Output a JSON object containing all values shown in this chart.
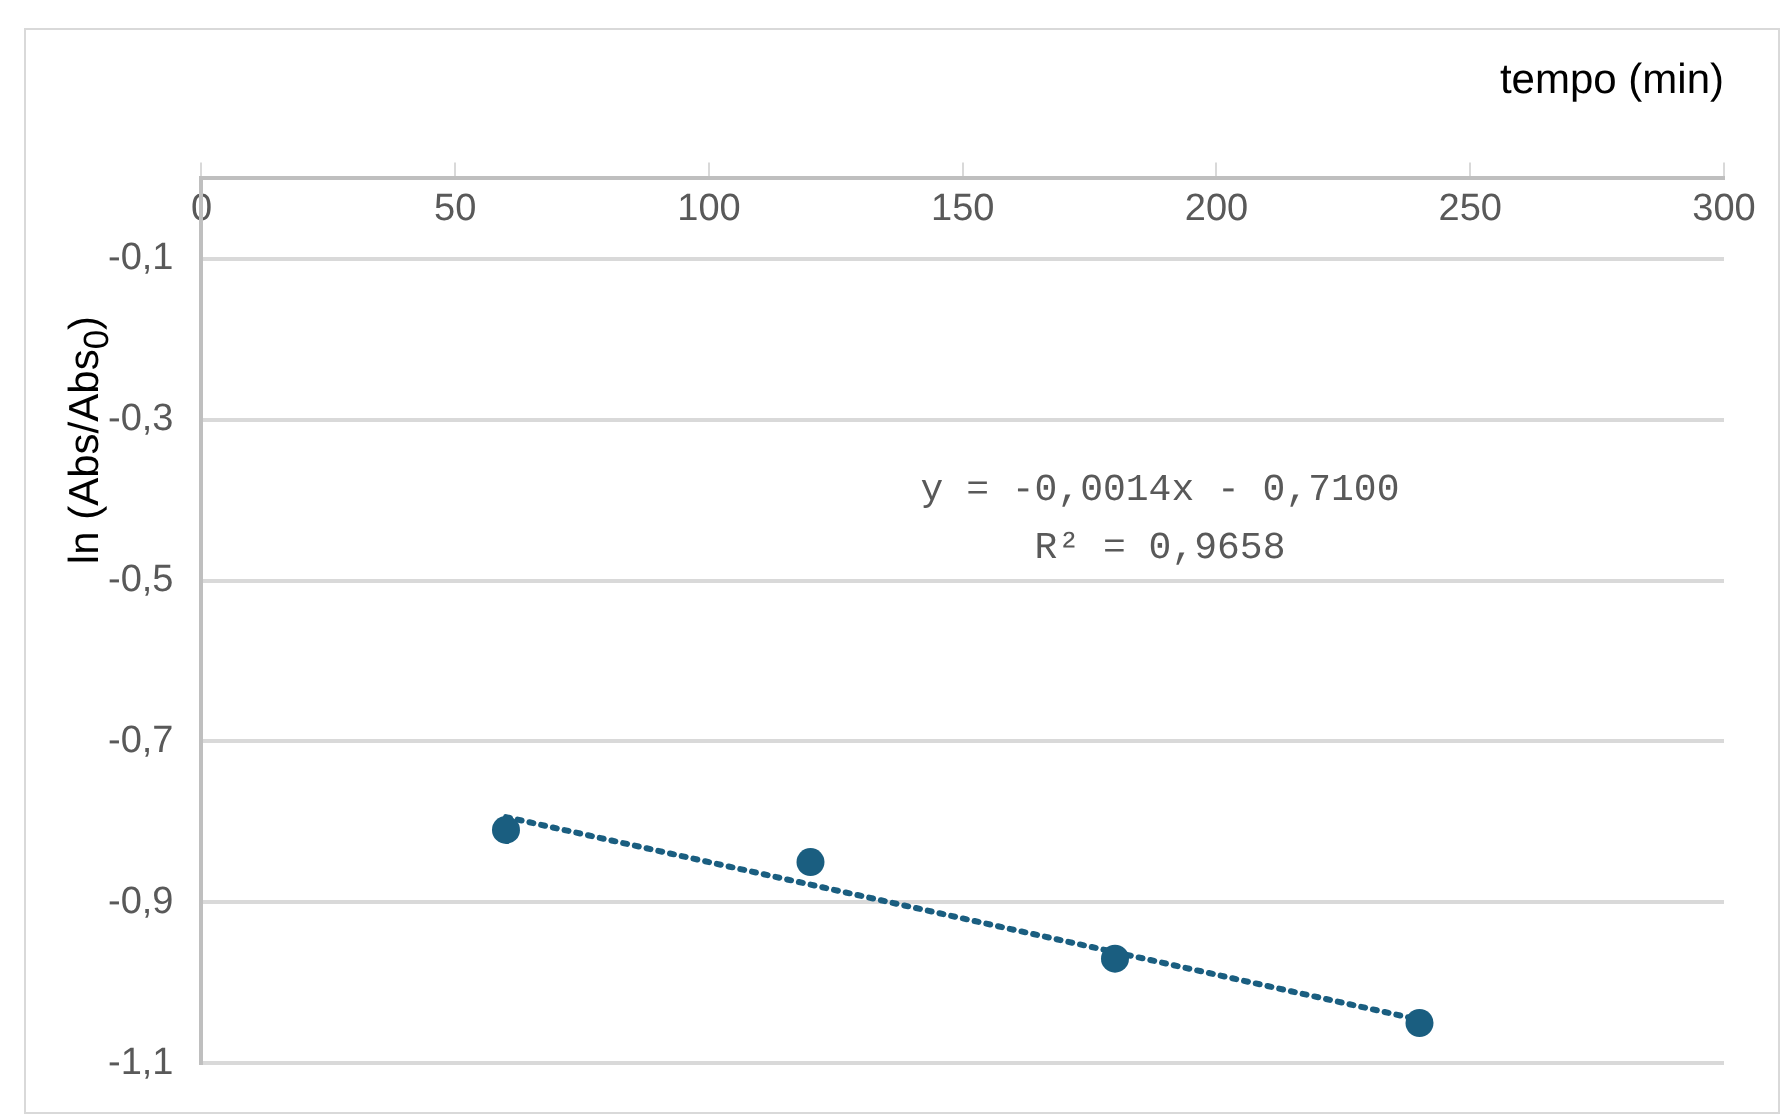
{
  "chart_data": {
    "type": "scatter",
    "xlabel": "tempo (min)",
    "ylabel": "ln (Abs/Abs$_{0}$)",
    "annotations": [
      "y = -0,0014x - 0,7100",
      "R² = 0,9658"
    ],
    "xlim": [
      0,
      300
    ],
    "xticks": [
      0,
      50,
      100,
      150,
      200,
      250,
      300
    ],
    "ylim": [
      -1.1,
      0
    ],
    "yticks": [
      {
        "value": -1.1,
        "label": "-1,1"
      },
      {
        "value": -0.9,
        "label": "-0,9"
      },
      {
        "value": -0.7,
        "label": "-0,7"
      },
      {
        "value": -0.5,
        "label": "-0,5"
      },
      {
        "value": -0.3,
        "label": "-0,3"
      },
      {
        "value": -0.1,
        "label": "-0,1"
      }
    ],
    "grid": "y",
    "series": [
      {
        "color": "#1a5e80",
        "marker": "circle",
        "x": [
          60,
          120,
          180,
          240
        ],
        "values": [
          -0.81,
          -0.85,
          -0.97,
          -1.05
        ]
      },
      {
        "type": "line",
        "color": "#1a5e80",
        "marker": "none",
        "line_style": "dotted",
        "x": [
          60,
          240
        ],
        "values": [
          -0.794,
          -1.046
        ]
      }
    ]
  }
}
